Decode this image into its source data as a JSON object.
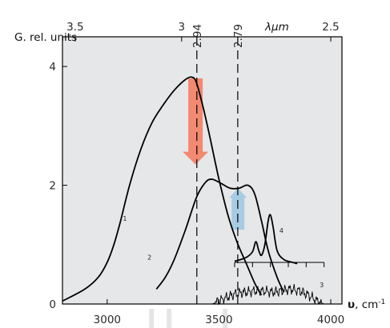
{
  "chart_data": {
    "type": "line",
    "ylabel": "G. rel. units",
    "xlabel": "υ, cm⁻¹",
    "x_unit_bold": "υ",
    "x_unit_rest": ", cm",
    "x_unit_sup": "-1",
    "xlim": [
      2800,
      4050
    ],
    "ylim": [
      0,
      4.5
    ],
    "x_ticks": [
      3000,
      3500,
      4000
    ],
    "y_ticks": [
      0,
      2,
      4
    ],
    "top_axis": {
      "label": "λμm",
      "ticks": [
        {
          "label": "3.5",
          "wavenumber": 2857
        },
        {
          "label": "3",
          "wavenumber": 3333
        },
        {
          "label": "2.5",
          "wavenumber": 4000
        }
      ],
      "dashed_markers": [
        {
          "label": "2.94",
          "wavenumber": 3401
        },
        {
          "label": "2.79",
          "wavenumber": 3584
        }
      ]
    },
    "series": [
      {
        "name": "1",
        "points": [
          [
            2800,
            0.05
          ],
          [
            2900,
            0.25
          ],
          [
            2960,
            0.45
          ],
          [
            3000,
            0.7
          ],
          [
            3030,
            1.0
          ],
          [
            3060,
            1.4
          ],
          [
            3100,
            2.0
          ],
          [
            3150,
            2.6
          ],
          [
            3200,
            3.05
          ],
          [
            3250,
            3.35
          ],
          [
            3300,
            3.6
          ],
          [
            3350,
            3.78
          ],
          [
            3380,
            3.82
          ],
          [
            3400,
            3.72
          ],
          [
            3430,
            3.3
          ],
          [
            3460,
            2.8
          ],
          [
            3500,
            2.1
          ],
          [
            3540,
            1.5
          ],
          [
            3580,
            1.05
          ],
          [
            3620,
            0.7
          ],
          [
            3660,
            0.35
          ],
          [
            3690,
            0.15
          ]
        ]
      },
      {
        "name": "2",
        "points": [
          [
            3220,
            0.25
          ],
          [
            3260,
            0.45
          ],
          [
            3300,
            0.75
          ],
          [
            3350,
            1.25
          ],
          [
            3400,
            1.8
          ],
          [
            3440,
            2.05
          ],
          [
            3470,
            2.1
          ],
          [
            3510,
            2.03
          ],
          [
            3550,
            1.95
          ],
          [
            3590,
            1.95
          ],
          [
            3630,
            2.0
          ],
          [
            3660,
            1.85
          ],
          [
            3690,
            1.4
          ],
          [
            3720,
            0.9
          ],
          [
            3760,
            0.45
          ],
          [
            3790,
            0.2
          ]
        ]
      },
      {
        "name": "4",
        "points": [
          [
            3570,
            0.72
          ],
          [
            3620,
            0.78
          ],
          [
            3650,
            0.88
          ],
          [
            3665,
            1.05
          ],
          [
            3678,
            0.9
          ],
          [
            3690,
            0.82
          ],
          [
            3705,
            1.0
          ],
          [
            3720,
            1.4
          ],
          [
            3730,
            1.5
          ],
          [
            3742,
            1.3
          ],
          [
            3760,
            0.9
          ],
          [
            3790,
            0.75
          ],
          [
            3830,
            0.7
          ],
          [
            3850,
            0.68
          ]
        ]
      },
      {
        "name": "3",
        "points": [
          [
            3470,
            0.0
          ],
          [
            3500,
            0.05
          ],
          [
            3540,
            0.12
          ],
          [
            3580,
            0.18
          ],
          [
            3620,
            0.2
          ],
          [
            3660,
            0.22
          ],
          [
            3700,
            0.22
          ],
          [
            3740,
            0.2
          ],
          [
            3780,
            0.22
          ],
          [
            3820,
            0.25
          ],
          [
            3860,
            0.22
          ],
          [
            3900,
            0.15
          ],
          [
            3940,
            0.05
          ],
          [
            3970,
            0.0
          ]
        ]
      }
    ],
    "inset_baseline": {
      "x_start": 3570,
      "x_end": 3970,
      "y": 0.7,
      "tick_count": 6
    },
    "arrows": [
      {
        "name": "decrease",
        "x": 3395,
        "from": 3.8,
        "to": 2.35,
        "color": "#f47c5f"
      },
      {
        "name": "increase",
        "x": 3585,
        "from": 1.25,
        "to": 1.95,
        "color": "#9ec7e0"
      }
    ],
    "colors": {
      "plot_bg": "#e6e7e9",
      "line": "#000000"
    },
    "grid": false,
    "background_label_x": 3080
  }
}
